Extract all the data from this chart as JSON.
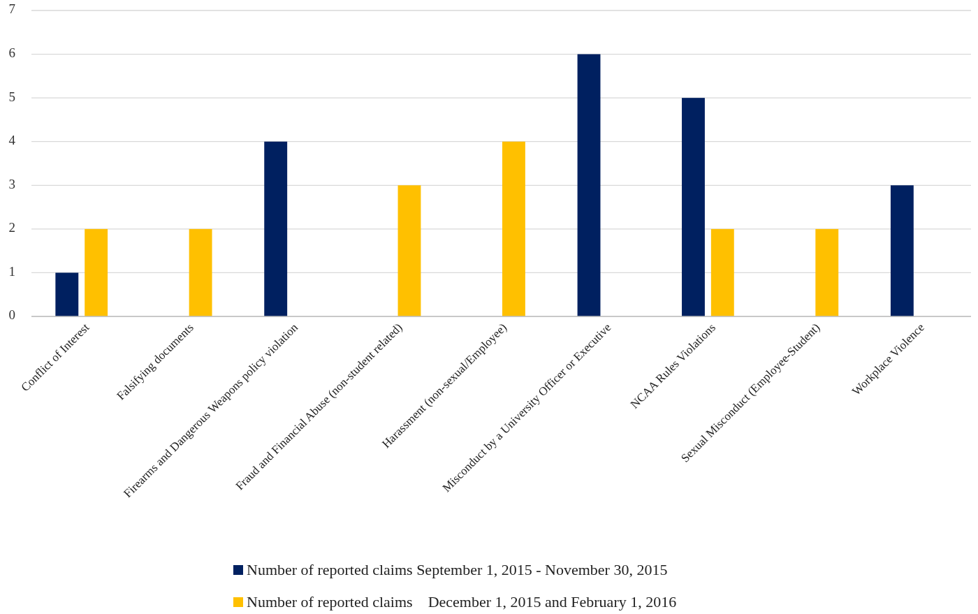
{
  "chart_data": {
    "type": "bar",
    "categories": [
      "Conflict of Interest",
      "Falsifying documents",
      "Firearms and Dangerous Weapons policy violation",
      "Fraud and Financial Abuse (non-student related)",
      "Harassment (non-sexual/Employee)",
      "Misconduct by a University Officer or Executive",
      "NCAA Rules Violations",
      "Sexual Misconduct (Employee-Student)",
      "Workplace Violence"
    ],
    "series": [
      {
        "name": "Number of reported claims September 1, 2015 - November 30, 2015",
        "color": "#002060",
        "values": [
          1,
          null,
          4,
          null,
          null,
          6,
          5,
          null,
          3
        ]
      },
      {
        "name": "Number of reported claims    December 1, 2015 and February 1, 2016",
        "color": "#ffc000",
        "values": [
          2,
          2,
          null,
          3,
          4,
          null,
          2,
          2,
          null
        ]
      }
    ],
    "ylim": [
      0,
      7
    ],
    "yticks": [
      0,
      1,
      2,
      3,
      4,
      5,
      6,
      7
    ],
    "grid": "y",
    "legend": "bottom"
  }
}
